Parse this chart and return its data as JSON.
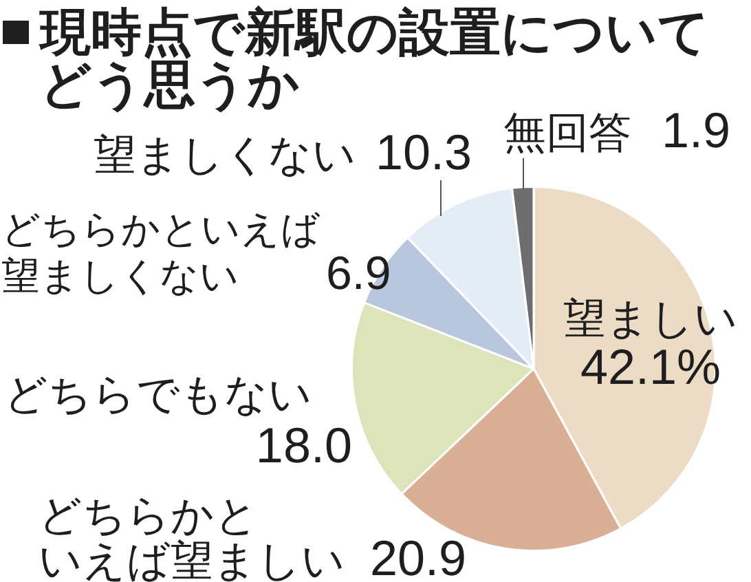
{
  "chart_data": {
    "type": "pie",
    "title": "現時点で新駅の設置についてどう思うか",
    "categories": [
      "望ましい",
      "どちらかといえば望ましい",
      "どちらでもない",
      "どちらかといえば望ましくない",
      "望ましくない",
      "無回答"
    ],
    "values": [
      42.1,
      20.9,
      18.0,
      6.9,
      10.3,
      1.9
    ],
    "value_labels": [
      "42.1%",
      "20.9",
      "18.0",
      "6.9",
      "10.3",
      "1.9"
    ],
    "colors": [
      "#ecdcc6",
      "#d9b095",
      "#dde4ba",
      "#b8c6de",
      "#e4edf6",
      "#6e6e6e"
    ]
  }
}
